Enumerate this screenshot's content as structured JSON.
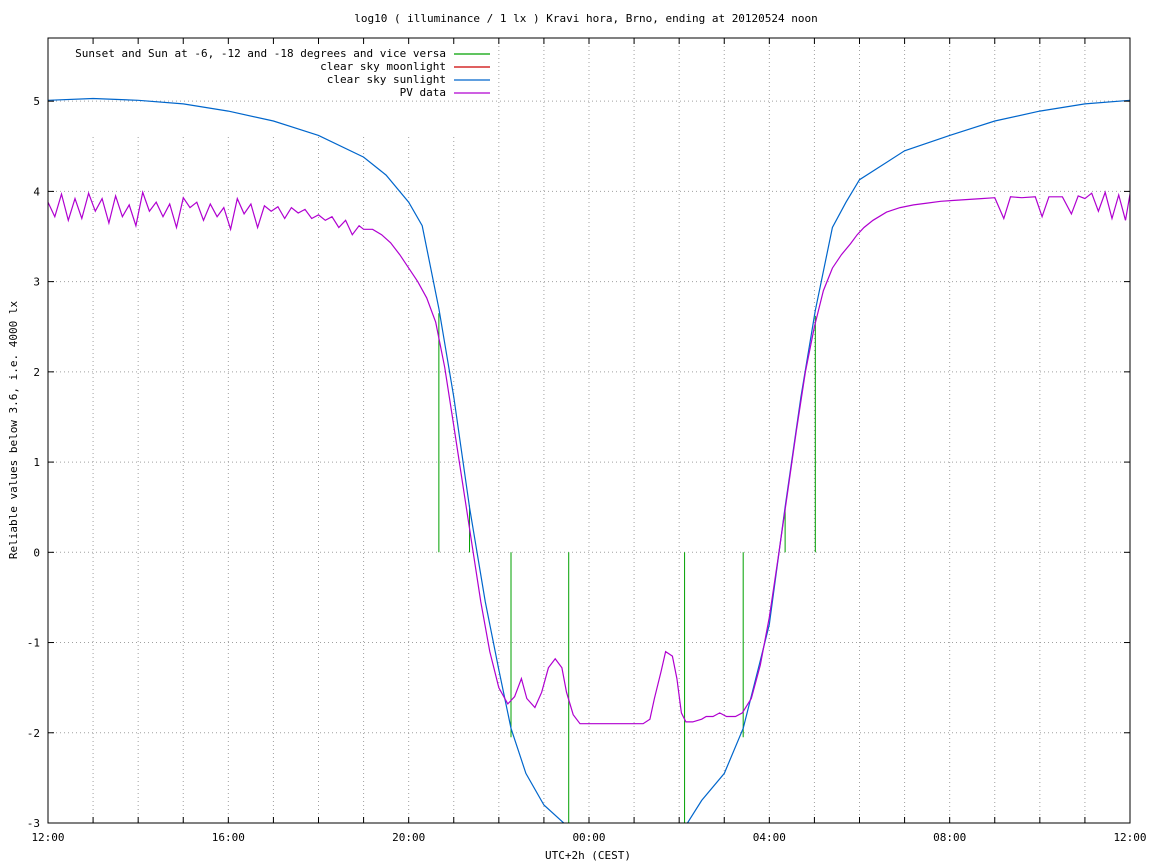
{
  "chart_data": {
    "type": "line",
    "title": "log10 ( illuminance / 1 lx ) Kravi hora, Brno, ending at 20120524 noon",
    "xlabel": "UTC+2h (CEST)",
    "ylabel": "Reliable values below 3.6, i.e. 4000 lx",
    "xlim": [
      12,
      36
    ],
    "ylim": [
      -3,
      5.7
    ],
    "x_ticks": [
      {
        "value": 12,
        "label": "12:00"
      },
      {
        "value": 16,
        "label": "16:00"
      },
      {
        "value": 20,
        "label": "20:00"
      },
      {
        "value": 24,
        "label": "00:00"
      },
      {
        "value": 28,
        "label": "04:00"
      },
      {
        "value": 32,
        "label": "08:00"
      },
      {
        "value": 36,
        "label": "12:00"
      }
    ],
    "y_ticks": [
      {
        "value": 5,
        "label": "5"
      },
      {
        "value": 4,
        "label": "4"
      },
      {
        "value": 3,
        "label": "3"
      },
      {
        "value": 2,
        "label": "2"
      },
      {
        "value": 1,
        "label": "1"
      },
      {
        "value": 0,
        "label": "0"
      },
      {
        "value": -1,
        "label": "-1"
      },
      {
        "value": -2,
        "label": "-2"
      },
      {
        "value": -3,
        "label": "-3"
      }
    ],
    "x_minor_grid_step": 1,
    "grid": true,
    "legend_position": "top-left",
    "series": [
      {
        "name": "Sunset and Sun at -6, -12 and -18 degrees and vice versa",
        "color": "#00a000",
        "style": "impulses",
        "points": [
          [
            20.67,
            2.65
          ],
          [
            21.35,
            0.52
          ],
          [
            22.27,
            -2.05
          ],
          [
            23.55,
            -3.0
          ],
          [
            26.12,
            -3.0
          ],
          [
            27.42,
            -2.05
          ],
          [
            28.35,
            0.48
          ],
          [
            29.02,
            2.62
          ]
        ]
      },
      {
        "name": "clear sky moonlight",
        "color": "#cc0000",
        "style": "line",
        "points": []
      },
      {
        "name": "clear sky sunlight",
        "color": "#0066cc",
        "style": "line",
        "points": [
          [
            12.0,
            5.01
          ],
          [
            13.0,
            5.03
          ],
          [
            14.0,
            5.01
          ],
          [
            15.0,
            4.97
          ],
          [
            16.0,
            4.89
          ],
          [
            17.0,
            4.78
          ],
          [
            18.0,
            4.62
          ],
          [
            19.0,
            4.38
          ],
          [
            19.5,
            4.18
          ],
          [
            20.0,
            3.88
          ],
          [
            20.3,
            3.62
          ],
          [
            20.67,
            2.7
          ],
          [
            21.0,
            1.72
          ],
          [
            21.35,
            0.5
          ],
          [
            21.7,
            -0.55
          ],
          [
            22.0,
            -1.3
          ],
          [
            22.27,
            -1.95
          ],
          [
            22.6,
            -2.45
          ],
          [
            23.0,
            -2.8
          ],
          [
            23.55,
            -3.05
          ],
          [
            24.0,
            -3.2
          ],
          [
            25.0,
            -3.4
          ],
          [
            26.12,
            -3.05
          ],
          [
            26.5,
            -2.75
          ],
          [
            27.0,
            -2.45
          ],
          [
            27.42,
            -1.95
          ],
          [
            27.8,
            -1.2
          ],
          [
            28.0,
            -0.8
          ],
          [
            28.35,
            0.5
          ],
          [
            28.7,
            1.72
          ],
          [
            29.02,
            2.68
          ],
          [
            29.4,
            3.6
          ],
          [
            29.7,
            3.88
          ],
          [
            30.0,
            4.13
          ],
          [
            31.0,
            4.45
          ],
          [
            32.0,
            4.62
          ],
          [
            33.0,
            4.78
          ],
          [
            34.0,
            4.89
          ],
          [
            35.0,
            4.97
          ],
          [
            36.0,
            5.01
          ]
        ]
      },
      {
        "name": "PV data",
        "color": "#b000d0",
        "style": "line",
        "points": [
          [
            12.0,
            3.88
          ],
          [
            12.15,
            3.72
          ],
          [
            12.3,
            3.97
          ],
          [
            12.45,
            3.68
          ],
          [
            12.6,
            3.92
          ],
          [
            12.75,
            3.7
          ],
          [
            12.9,
            3.98
          ],
          [
            13.05,
            3.78
          ],
          [
            13.2,
            3.92
          ],
          [
            13.35,
            3.65
          ],
          [
            13.5,
            3.95
          ],
          [
            13.65,
            3.72
          ],
          [
            13.8,
            3.85
          ],
          [
            13.95,
            3.62
          ],
          [
            14.1,
            3.99
          ],
          [
            14.25,
            3.78
          ],
          [
            14.4,
            3.88
          ],
          [
            14.55,
            3.72
          ],
          [
            14.7,
            3.86
          ],
          [
            14.85,
            3.6
          ],
          [
            15.0,
            3.93
          ],
          [
            15.15,
            3.82
          ],
          [
            15.3,
            3.88
          ],
          [
            15.45,
            3.68
          ],
          [
            15.6,
            3.86
          ],
          [
            15.75,
            3.72
          ],
          [
            15.9,
            3.82
          ],
          [
            16.05,
            3.58
          ],
          [
            16.2,
            3.92
          ],
          [
            16.35,
            3.75
          ],
          [
            16.5,
            3.86
          ],
          [
            16.65,
            3.6
          ],
          [
            16.8,
            3.84
          ],
          [
            16.95,
            3.78
          ],
          [
            17.1,
            3.83
          ],
          [
            17.25,
            3.7
          ],
          [
            17.4,
            3.82
          ],
          [
            17.55,
            3.76
          ],
          [
            17.7,
            3.8
          ],
          [
            17.85,
            3.7
          ],
          [
            18.0,
            3.74
          ],
          [
            18.15,
            3.68
          ],
          [
            18.3,
            3.72
          ],
          [
            18.45,
            3.6
          ],
          [
            18.6,
            3.68
          ],
          [
            18.75,
            3.52
          ],
          [
            18.9,
            3.62
          ],
          [
            19.0,
            3.58
          ],
          [
            19.2,
            3.58
          ],
          [
            19.4,
            3.52
          ],
          [
            19.6,
            3.43
          ],
          [
            19.8,
            3.3
          ],
          [
            20.0,
            3.15
          ],
          [
            20.2,
            3.0
          ],
          [
            20.4,
            2.82
          ],
          [
            20.6,
            2.55
          ],
          [
            20.8,
            2.05
          ],
          [
            21.0,
            1.4
          ],
          [
            21.2,
            0.75
          ],
          [
            21.4,
            0.1
          ],
          [
            21.6,
            -0.55
          ],
          [
            21.8,
            -1.1
          ],
          [
            22.0,
            -1.5
          ],
          [
            22.2,
            -1.68
          ],
          [
            22.35,
            -1.6
          ],
          [
            22.5,
            -1.4
          ],
          [
            22.62,
            -1.62
          ],
          [
            22.8,
            -1.72
          ],
          [
            22.95,
            -1.55
          ],
          [
            23.1,
            -1.28
          ],
          [
            23.25,
            -1.18
          ],
          [
            23.4,
            -1.28
          ],
          [
            23.5,
            -1.55
          ],
          [
            23.65,
            -1.8
          ],
          [
            23.8,
            -1.9
          ],
          [
            24.0,
            -1.9
          ],
          [
            24.4,
            -1.9
          ],
          [
            24.8,
            -1.9
          ],
          [
            25.2,
            -1.9
          ],
          [
            25.35,
            -1.85
          ],
          [
            25.45,
            -1.62
          ],
          [
            25.6,
            -1.32
          ],
          [
            25.7,
            -1.1
          ],
          [
            25.85,
            -1.15
          ],
          [
            25.95,
            -1.4
          ],
          [
            26.05,
            -1.78
          ],
          [
            26.15,
            -1.88
          ],
          [
            26.3,
            -1.88
          ],
          [
            26.5,
            -1.85
          ],
          [
            26.6,
            -1.82
          ],
          [
            26.75,
            -1.82
          ],
          [
            26.9,
            -1.78
          ],
          [
            27.05,
            -1.82
          ],
          [
            27.25,
            -1.82
          ],
          [
            27.4,
            -1.78
          ],
          [
            27.6,
            -1.62
          ],
          [
            27.8,
            -1.25
          ],
          [
            28.0,
            -0.72
          ],
          [
            28.2,
            -0.05
          ],
          [
            28.4,
            0.65
          ],
          [
            28.6,
            1.35
          ],
          [
            28.8,
            2.0
          ],
          [
            29.0,
            2.5
          ],
          [
            29.2,
            2.9
          ],
          [
            29.4,
            3.15
          ],
          [
            29.6,
            3.3
          ],
          [
            29.8,
            3.42
          ],
          [
            29.95,
            3.52
          ],
          [
            30.1,
            3.6
          ],
          [
            30.3,
            3.68
          ],
          [
            30.6,
            3.77
          ],
          [
            30.9,
            3.82
          ],
          [
            31.2,
            3.85
          ],
          [
            31.5,
            3.87
          ],
          [
            31.8,
            3.89
          ],
          [
            32.1,
            3.9
          ],
          [
            32.4,
            3.91
          ],
          [
            32.7,
            3.92
          ],
          [
            33.0,
            3.93
          ],
          [
            33.2,
            3.7
          ],
          [
            33.35,
            3.94
          ],
          [
            33.6,
            3.93
          ],
          [
            33.9,
            3.94
          ],
          [
            34.05,
            3.72
          ],
          [
            34.2,
            3.94
          ],
          [
            34.5,
            3.94
          ],
          [
            34.7,
            3.75
          ],
          [
            34.85,
            3.95
          ],
          [
            35.0,
            3.92
          ],
          [
            35.15,
            3.98
          ],
          [
            35.3,
            3.78
          ],
          [
            35.45,
            3.99
          ],
          [
            35.6,
            3.7
          ],
          [
            35.75,
            3.96
          ],
          [
            35.9,
            3.68
          ],
          [
            36.0,
            3.97
          ]
        ]
      }
    ]
  }
}
